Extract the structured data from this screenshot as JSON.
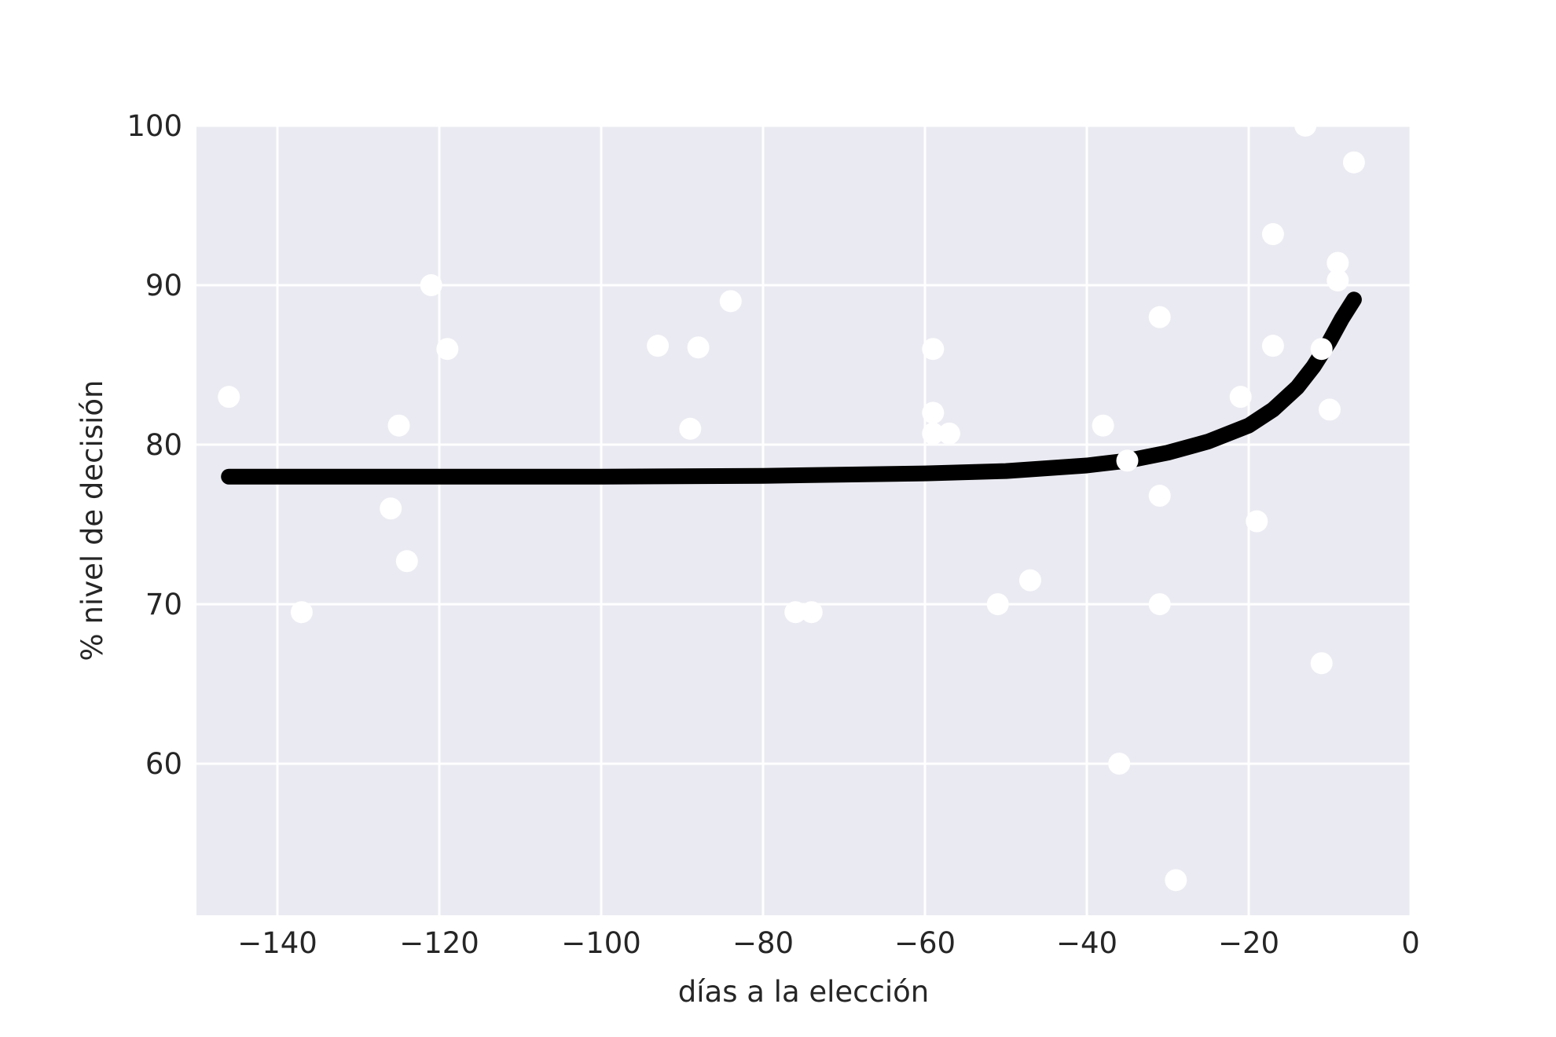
{
  "chart_data": {
    "type": "scatter",
    "title": "",
    "xlabel": "días a la elección",
    "ylabel": "% nivel de decisión",
    "xlim": [
      -150,
      0
    ],
    "ylim": [
      50.5,
      100
    ],
    "xticks": [
      -140,
      -120,
      -100,
      -80,
      -60,
      -40,
      -20,
      0
    ],
    "xtick_labels": [
      "−140",
      "−120",
      "−100",
      "−80",
      "−60",
      "−40",
      "−20",
      "0"
    ],
    "yticks": [
      60,
      70,
      80,
      90,
      100
    ],
    "ytick_labels": [
      "60",
      "70",
      "80",
      "90",
      "100"
    ],
    "grid": true,
    "colors": {
      "background": "#eaeaf2",
      "grid": "#ffffff",
      "points": "#ffffff",
      "line": "#000000"
    },
    "points": [
      [
        -146,
        83
      ],
      [
        -137,
        69.5
      ],
      [
        -126,
        76
      ],
      [
        -125,
        81.2
      ],
      [
        -124,
        72.7
      ],
      [
        -121,
        90
      ],
      [
        -119,
        86
      ],
      [
        -93,
        86.2
      ],
      [
        -89,
        81
      ],
      [
        -88,
        86.1
      ],
      [
        -84,
        89
      ],
      [
        -76,
        69.5
      ],
      [
        -74,
        69.5
      ],
      [
        -59,
        86
      ],
      [
        -59,
        82
      ],
      [
        -59,
        80.7
      ],
      [
        -57,
        80.7
      ],
      [
        -51,
        70
      ],
      [
        -47,
        71.5
      ],
      [
        -38,
        81.2
      ],
      [
        -36,
        60
      ],
      [
        -35,
        79
      ],
      [
        -31,
        88
      ],
      [
        -31,
        76.8
      ],
      [
        -31,
        70
      ],
      [
        -29,
        52.7
      ],
      [
        -21,
        83
      ],
      [
        -19,
        75.2
      ],
      [
        -17,
        93.2
      ],
      [
        -17,
        86.2
      ],
      [
        -13,
        100
      ],
      [
        -11,
        66.3
      ],
      [
        -11,
        86
      ],
      [
        -10,
        82.2
      ],
      [
        -9,
        91.4
      ],
      [
        -9,
        90.3
      ],
      [
        -7,
        97.7
      ]
    ],
    "fit_line": [
      [
        -146,
        78
      ],
      [
        -120,
        78
      ],
      [
        -100,
        78
      ],
      [
        -80,
        78.05
      ],
      [
        -60,
        78.2
      ],
      [
        -50,
        78.35
      ],
      [
        -40,
        78.7
      ],
      [
        -35,
        79.0
      ],
      [
        -30,
        79.5
      ],
      [
        -25,
        80.2
      ],
      [
        -20,
        81.2
      ],
      [
        -17,
        82.2
      ],
      [
        -14,
        83.6
      ],
      [
        -12,
        84.9
      ],
      [
        -10,
        86.5
      ],
      [
        -8.5,
        87.9
      ],
      [
        -7,
        89.1
      ]
    ]
  }
}
